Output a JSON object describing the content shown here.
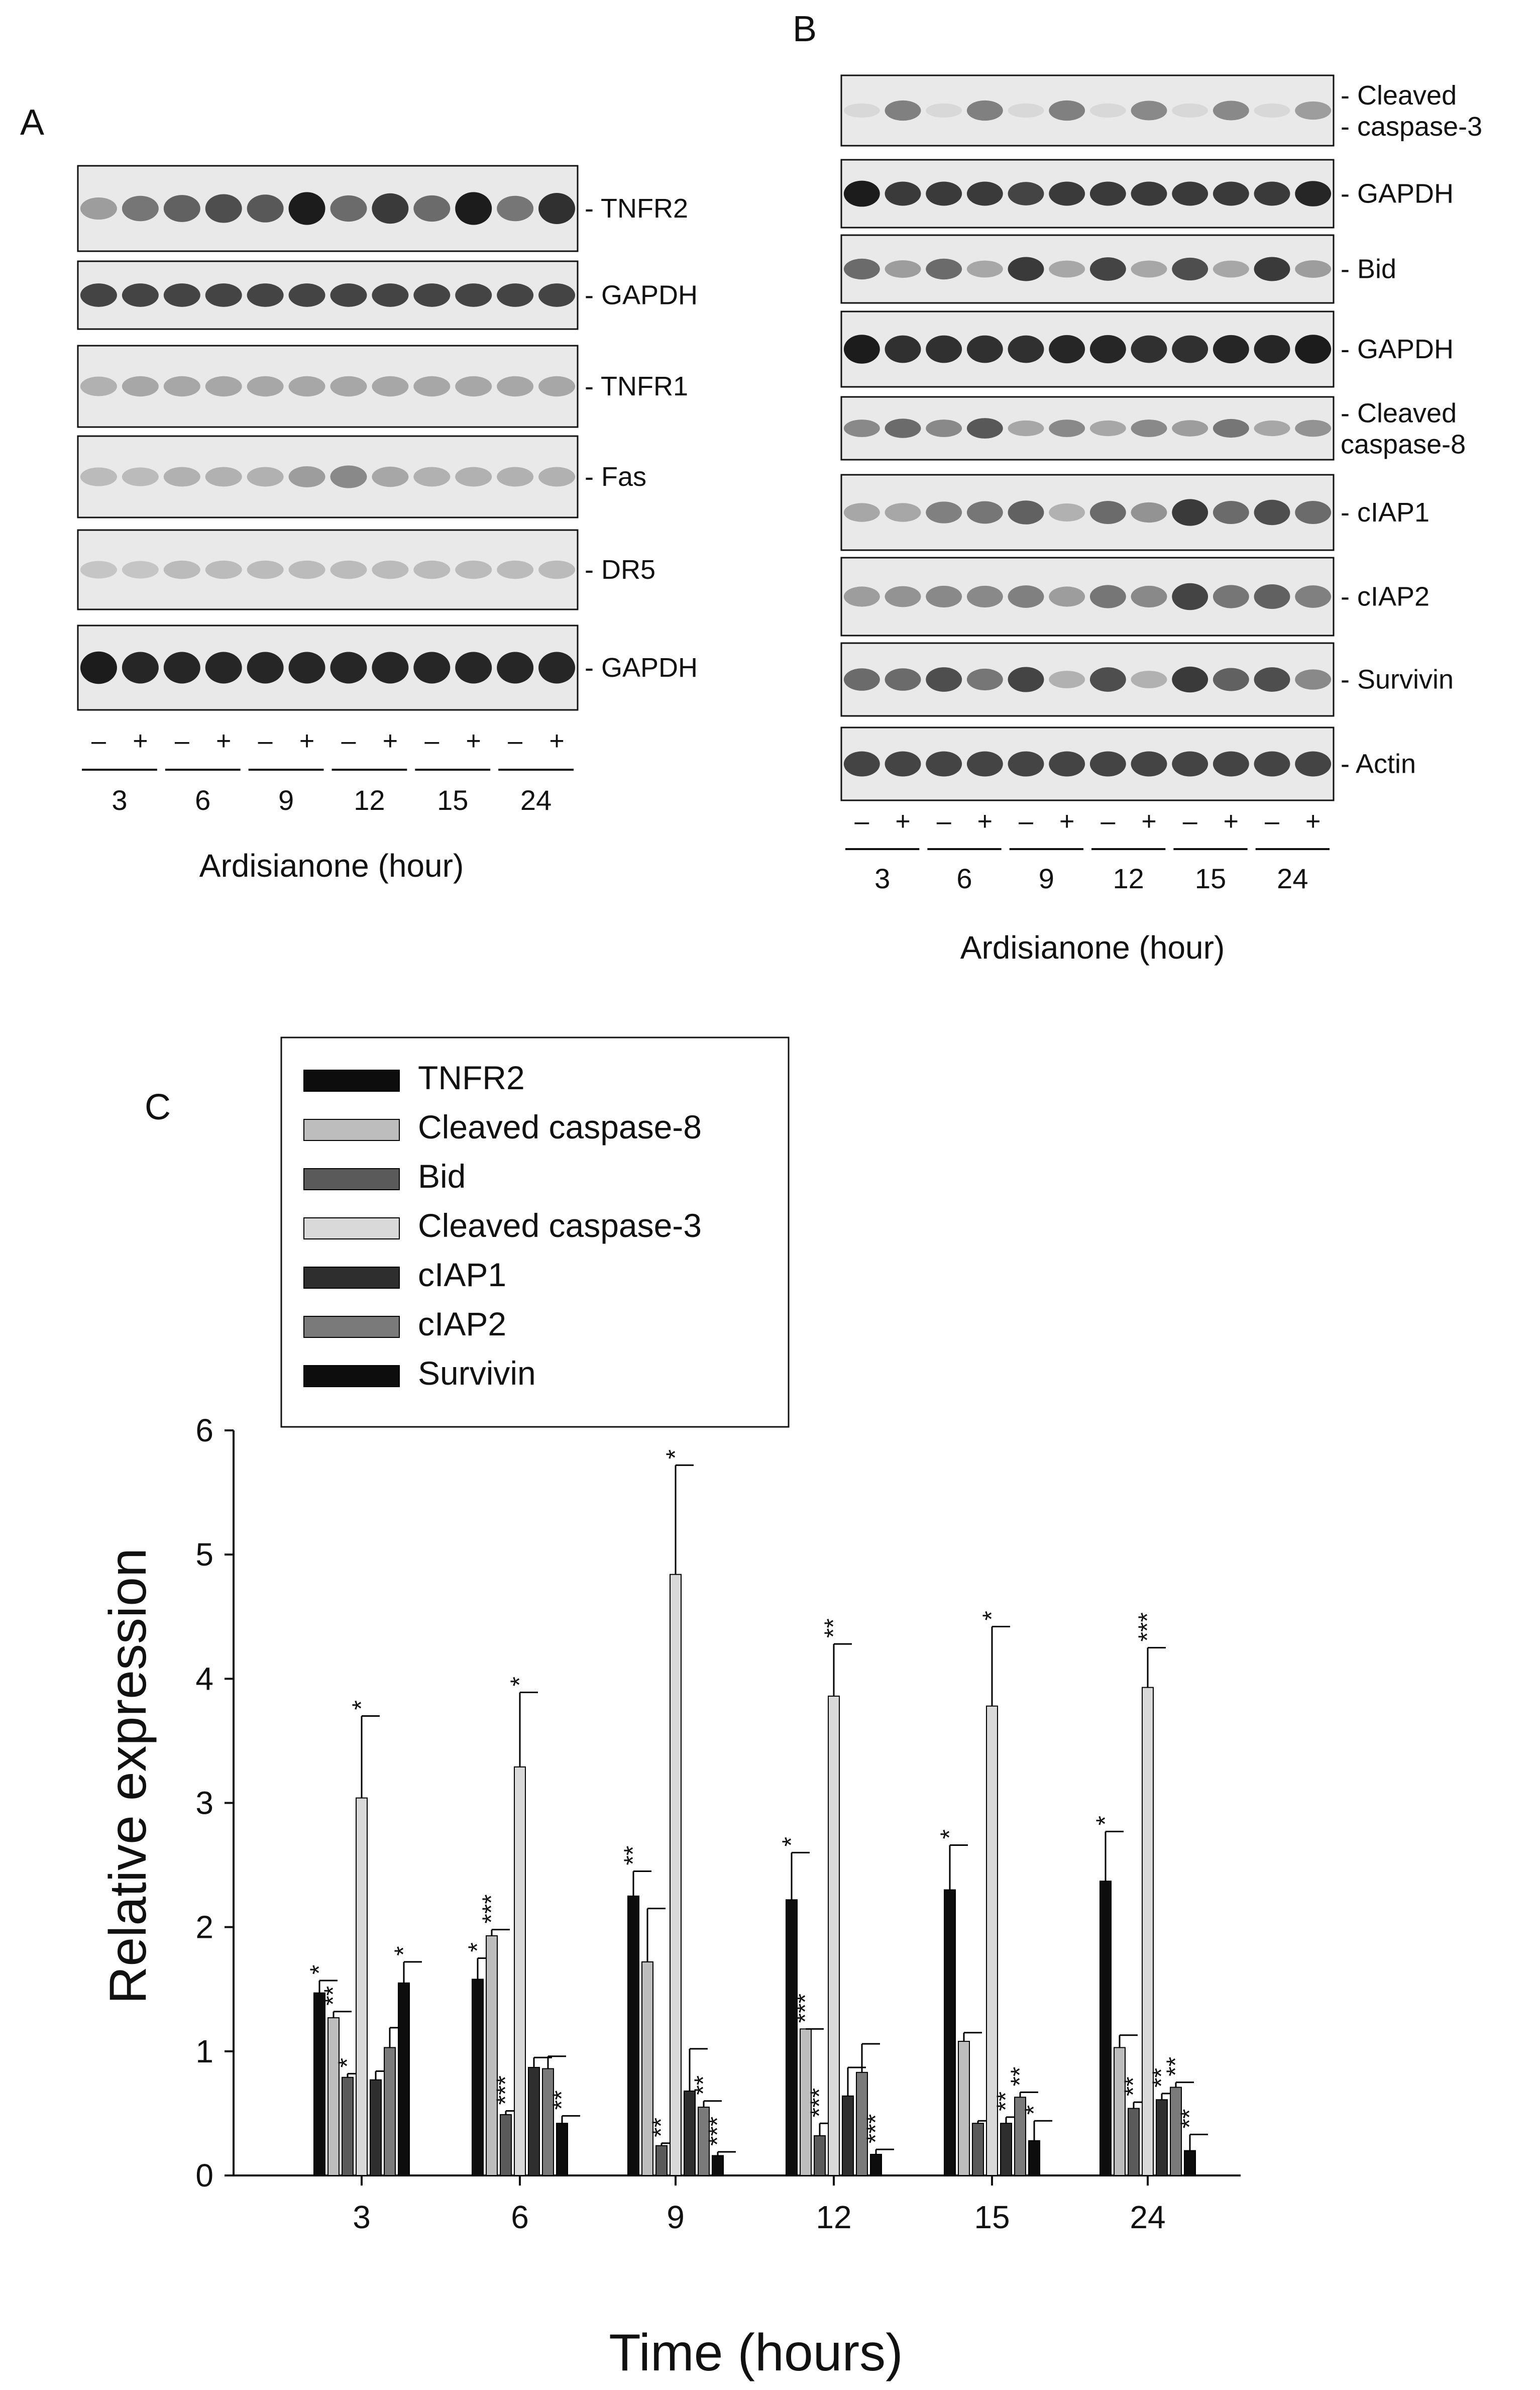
{
  "panel_a": {
    "letter": "A",
    "blots": [
      {
        "label": "- TNFR2",
        "intensity": [
          0.35,
          0.55,
          0.65,
          0.75,
          0.7,
          1.0,
          0.6,
          0.85,
          0.6,
          1.0,
          0.55,
          0.9
        ]
      },
      {
        "label": "- GAPDH",
        "intensity": [
          0.8,
          0.8,
          0.8,
          0.8,
          0.8,
          0.8,
          0.8,
          0.8,
          0.8,
          0.8,
          0.8,
          0.8
        ]
      },
      {
        "label": "- TNFR1",
        "intensity": [
          0.25,
          0.3,
          0.3,
          0.3,
          0.3,
          0.3,
          0.3,
          0.3,
          0.3,
          0.3,
          0.3,
          0.3
        ]
      },
      {
        "label": "- Fas",
        "intensity": [
          0.2,
          0.2,
          0.25,
          0.25,
          0.25,
          0.35,
          0.45,
          0.3,
          0.25,
          0.25,
          0.25,
          0.25
        ]
      },
      {
        "label": "- DR5",
        "intensity": [
          0.15,
          0.15,
          0.2,
          0.2,
          0.2,
          0.2,
          0.2,
          0.2,
          0.2,
          0.2,
          0.2,
          0.2
        ]
      },
      {
        "label": "- GAPDH",
        "intensity": [
          1.0,
          0.95,
          0.95,
          0.95,
          0.95,
          0.95,
          0.95,
          0.95,
          0.95,
          0.95,
          0.95,
          0.95
        ]
      }
    ],
    "lane_signs": [
      "–",
      "+",
      "–",
      "+",
      "–",
      "+",
      "–",
      "+",
      "–",
      "+",
      "–",
      "+"
    ],
    "timepoints": [
      "3",
      "6",
      "9",
      "12",
      "15",
      "24"
    ],
    "axis_title": "Ardisianone (hour)"
  },
  "panel_b": {
    "letter": "B",
    "blots": [
      {
        "label_lines": [
          "- Cleaved",
          "- caspase-3"
        ],
        "intensity": [
          0.05,
          0.5,
          0.05,
          0.5,
          0.05,
          0.5,
          0.05,
          0.45,
          0.05,
          0.45,
          0.05,
          0.35
        ]
      },
      {
        "label_lines": [
          "- GAPDH"
        ],
        "intensity": [
          1.0,
          0.85,
          0.85,
          0.85,
          0.8,
          0.85,
          0.85,
          0.85,
          0.85,
          0.85,
          0.85,
          0.95
        ]
      },
      {
        "label_lines": [
          "- Bid"
        ],
        "intensity": [
          0.6,
          0.35,
          0.6,
          0.3,
          0.85,
          0.3,
          0.8,
          0.3,
          0.75,
          0.3,
          0.85,
          0.35
        ]
      },
      {
        "label_lines": [
          "- GAPDH"
        ],
        "intensity": [
          1.0,
          0.9,
          0.9,
          0.9,
          0.9,
          0.95,
          0.95,
          0.9,
          0.9,
          0.95,
          0.95,
          1.0
        ]
      },
      {
        "label_lines": [
          "- Cleaved",
          "  caspase-8"
        ],
        "intensity": [
          0.45,
          0.6,
          0.45,
          0.7,
          0.3,
          0.45,
          0.3,
          0.45,
          0.35,
          0.55,
          0.3,
          0.4
        ]
      },
      {
        "label_lines": [
          "- cIAP1"
        ],
        "intensity": [
          0.3,
          0.3,
          0.5,
          0.55,
          0.65,
          0.25,
          0.6,
          0.4,
          0.85,
          0.6,
          0.75,
          0.6
        ]
      },
      {
        "label_lines": [
          "- cIAP2"
        ],
        "intensity": [
          0.35,
          0.4,
          0.45,
          0.45,
          0.5,
          0.35,
          0.55,
          0.45,
          0.8,
          0.55,
          0.65,
          0.5
        ]
      },
      {
        "label_lines": [
          "- Survivin"
        ],
        "intensity": [
          0.6,
          0.6,
          0.75,
          0.55,
          0.8,
          0.25,
          0.75,
          0.25,
          0.85,
          0.65,
          0.75,
          0.45
        ]
      },
      {
        "label_lines": [
          "- Actin"
        ],
        "intensity": [
          0.8,
          0.8,
          0.8,
          0.8,
          0.8,
          0.8,
          0.8,
          0.8,
          0.8,
          0.8,
          0.8,
          0.8
        ]
      }
    ],
    "lane_signs": [
      "–",
      "+",
      "–",
      "+",
      "–",
      "+",
      "–",
      "+",
      "–",
      "+",
      "–",
      "+"
    ],
    "timepoints": [
      "3",
      "6",
      "9",
      "12",
      "15",
      "24"
    ],
    "axis_title": "Ardisianone (hour)"
  },
  "panel_c": {
    "letter": "C"
  },
  "chart_data": {
    "type": "bar",
    "title": "",
    "xlabel": "Time (hours)",
    "ylabel": "Relative expression",
    "categories": [
      "3",
      "6",
      "9",
      "12",
      "15",
      "24"
    ],
    "ylim": [
      0,
      6
    ],
    "yticks": [
      "0",
      "1",
      "2",
      "3",
      "4",
      "5",
      "6"
    ],
    "grid": false,
    "legend_position": "top-left",
    "series": [
      {
        "name": "TNFR2",
        "color": "#0d0d0d",
        "values": [
          1.47,
          1.58,
          2.25,
          2.22,
          2.3,
          2.37
        ],
        "errors": [
          0.1,
          0.17,
          0.2,
          0.38,
          0.36,
          0.4
        ],
        "stars": [
          "*",
          "*",
          "**",
          "*",
          "*",
          "*"
        ]
      },
      {
        "name": "Cleaved caspase-8",
        "color": "#bdbdbd",
        "values": [
          1.27,
          1.93,
          1.72,
          1.18,
          1.08,
          1.03
        ],
        "errors": [
          0.05,
          0.05,
          0.43,
          0.0,
          0.07,
          0.1
        ],
        "stars": [
          "**",
          "***",
          "",
          "***",
          "",
          ""
        ]
      },
      {
        "name": "Bid",
        "color": "#5a5a5a",
        "values": [
          0.79,
          0.49,
          0.24,
          0.32,
          0.42,
          0.54
        ],
        "errors": [
          0.03,
          0.03,
          0.02,
          0.1,
          0.02,
          0.05
        ],
        "stars": [
          "*",
          "***",
          "**",
          "***",
          "",
          "**"
        ]
      },
      {
        "name": "Cleaved caspase-3",
        "color": "#d9d9d9",
        "values": [
          3.04,
          3.29,
          4.84,
          3.86,
          3.78,
          3.93
        ],
        "errors": [
          0.66,
          0.6,
          0.88,
          0.42,
          0.64,
          0.32
        ],
        "stars": [
          "*",
          "*",
          "*",
          "**",
          "*",
          "***"
        ]
      },
      {
        "name": "cIAP1",
        "color": "#2e2e2e",
        "values": [
          0.77,
          0.87,
          0.68,
          0.64,
          0.42,
          0.61
        ],
        "errors": [
          0.07,
          0.08,
          0.34,
          0.23,
          0.05,
          0.05
        ],
        "stars": [
          "",
          "",
          "",
          "",
          "**",
          "**"
        ]
      },
      {
        "name": "cIAP2",
        "color": "#7a7a7a",
        "values": [
          1.03,
          0.86,
          0.55,
          0.83,
          0.63,
          0.71
        ],
        "errors": [
          0.16,
          0.1,
          0.05,
          0.23,
          0.04,
          0.04
        ],
        "stars": [
          "",
          "",
          "**",
          "",
          "**",
          "**"
        ]
      },
      {
        "name": "Survivin",
        "color": "#0d0d0d",
        "values": [
          1.55,
          0.42,
          0.16,
          0.17,
          0.28,
          0.2
        ],
        "errors": [
          0.17,
          0.06,
          0.03,
          0.04,
          0.16,
          0.13
        ],
        "stars": [
          "*",
          "**",
          "***",
          "***",
          "*",
          "**"
        ]
      }
    ]
  }
}
